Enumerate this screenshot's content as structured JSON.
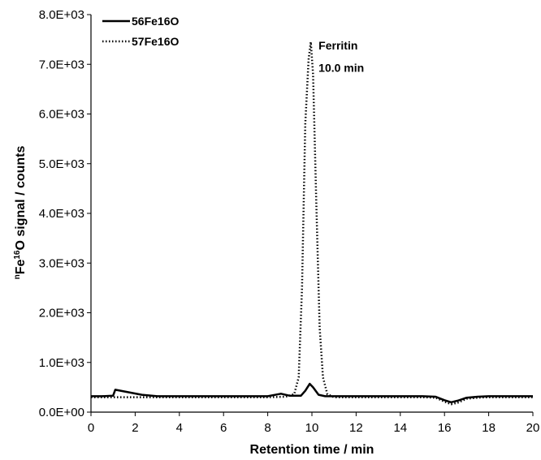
{
  "chart_data": {
    "type": "line",
    "xlabel": "Retention time / min",
    "ylabel": {
      "prefix": "n",
      "main": "Fe",
      "sup": "16",
      "rest": "O signal  / counts"
    },
    "xlim": [
      0,
      20
    ],
    "ylim": [
      0,
      8000
    ],
    "xticks": [
      "0",
      "2",
      "4",
      "6",
      "8",
      "10",
      "12",
      "14",
      "16",
      "18",
      "20"
    ],
    "xtick_values": [
      0,
      2,
      4,
      6,
      8,
      10,
      12,
      14,
      16,
      18,
      20
    ],
    "yticks": [
      "0.0E+00",
      "1.0E+03",
      "2.0E+03",
      "3.0E+03",
      "4.0E+03",
      "5.0E+03",
      "6.0E+03",
      "7.0E+03",
      "8.0E+03"
    ],
    "ytick_values": [
      0,
      1000,
      2000,
      3000,
      4000,
      5000,
      6000,
      7000,
      8000
    ],
    "grid": false,
    "legend_position": "top-left",
    "series": [
      {
        "name": "56Fe16O",
        "style": "solid",
        "x": [
          0,
          0.5,
          1.0,
          1.1,
          2.3,
          3,
          4,
          5,
          6,
          7,
          8,
          8.6,
          9.0,
          9.5,
          9.7,
          9.9,
          10.05,
          10.3,
          10.6,
          11,
          12,
          13,
          14,
          15,
          15.6,
          16.0,
          16.3,
          16.6,
          17.0,
          17.5,
          18,
          19,
          20
        ],
        "y": [
          320,
          320,
          330,
          450,
          350,
          320,
          320,
          320,
          320,
          320,
          320,
          370,
          330,
          330,
          430,
          570,
          500,
          350,
          320,
          320,
          320,
          320,
          320,
          320,
          310,
          240,
          200,
          230,
          290,
          310,
          320,
          320,
          320
        ]
      },
      {
        "name": "57Fe16O",
        "style": "dotted",
        "x": [
          0,
          1,
          2,
          3,
          4,
          5,
          6,
          7,
          8,
          8.8,
          9.2,
          9.4,
          9.55,
          9.7,
          9.85,
          9.95,
          10.05,
          10.2,
          10.35,
          10.5,
          10.7,
          11,
          12,
          13,
          14,
          15,
          15.6,
          16.0,
          16.3,
          16.6,
          17.0,
          17.5,
          18,
          19,
          20
        ],
        "y": [
          300,
          300,
          300,
          300,
          300,
          300,
          300,
          300,
          300,
          310,
          360,
          700,
          2500,
          5800,
          7100,
          7450,
          6800,
          4200,
          1700,
          700,
          360,
          300,
          300,
          300,
          300,
          300,
          290,
          210,
          160,
          190,
          270,
          290,
          300,
          300,
          300
        ]
      }
    ],
    "annotations": [
      {
        "text": "Ferritin",
        "x": 10.3,
        "y": 7300
      },
      {
        "text": "10.0 min",
        "x": 10.3,
        "y": 6850
      }
    ]
  }
}
